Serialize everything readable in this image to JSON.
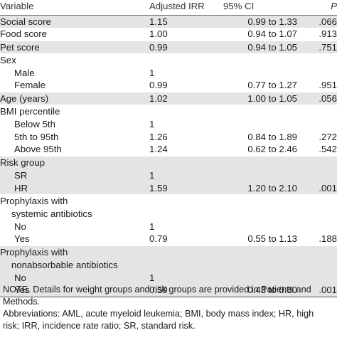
{
  "header": {
    "variable": "Variable",
    "irr": "Adjusted IRR",
    "ci": "95% CI",
    "p": "P"
  },
  "rows": [
    {
      "label": "Social score",
      "irr": "1.15",
      "ci": "0.99 to 1.33",
      "p": ".066"
    },
    {
      "label": "Food score",
      "irr": "1.00",
      "ci": "0.94 to 1.07",
      "p": ".913"
    },
    {
      "label": "Pet score",
      "irr": "0.99",
      "ci": "0.94 to 1.05",
      "p": ".751"
    },
    {
      "label": "Sex",
      "irr": "",
      "ci": "",
      "p": ""
    },
    {
      "label": "Male",
      "irr": "1",
      "ci": "",
      "p": ""
    },
    {
      "label": "Female",
      "irr": "0.99",
      "ci": "0.77 to 1.27",
      "p": ".951"
    },
    {
      "label": "Age (years)",
      "irr": "1.02",
      "ci": "1.00 to 1.05",
      "p": ".056"
    },
    {
      "label": "BMI percentile",
      "irr": "",
      "ci": "",
      "p": ""
    },
    {
      "label": "Below 5th",
      "irr": "1",
      "ci": "",
      "p": ""
    },
    {
      "label": "5th to 95th",
      "irr": "1.26",
      "ci": "0.84 to 1.89",
      "p": ".272"
    },
    {
      "label": "Above 95th",
      "irr": "1.24",
      "ci": "0.62 to 2.46",
      "p": ".542"
    },
    {
      "label": "Risk group",
      "irr": "",
      "ci": "",
      "p": ""
    },
    {
      "label": "SR",
      "irr": "1",
      "ci": "",
      "p": ""
    },
    {
      "label": "HR",
      "irr": "1.59",
      "ci": "1.20 to 2.10",
      "p": ".001"
    },
    {
      "label": "Prophylaxis with",
      "irr": "",
      "ci": "",
      "p": ""
    },
    {
      "label": "systemic antibiotics",
      "irr": "",
      "ci": "",
      "p": ""
    },
    {
      "label": "No",
      "irr": "1",
      "ci": "",
      "p": ""
    },
    {
      "label": "Yes",
      "irr": "0.79",
      "ci": "0.55 to 1.13",
      "p": ".188"
    },
    {
      "label": "Prophylaxis with",
      "irr": "",
      "ci": "",
      "p": ""
    },
    {
      "label": "nonabsorbable antibiotics",
      "irr": "",
      "ci": "",
      "p": ""
    },
    {
      "label": "No",
      "irr": "1",
      "ci": "",
      "p": ""
    },
    {
      "label": "Yes",
      "irr": "0.59",
      "ci": "0.43 to 0.80",
      "p": ".001"
    }
  ],
  "notes": [
    "NOTE. Details for weight groups and risk groups are provided in Patients and",
    "Methods.",
    "Abbreviations: AML, acute myeloid leukemia; BMI, body mass index; HR, high",
    "risk; IRR, incidence rate ratio; SR, standard risk."
  ]
}
